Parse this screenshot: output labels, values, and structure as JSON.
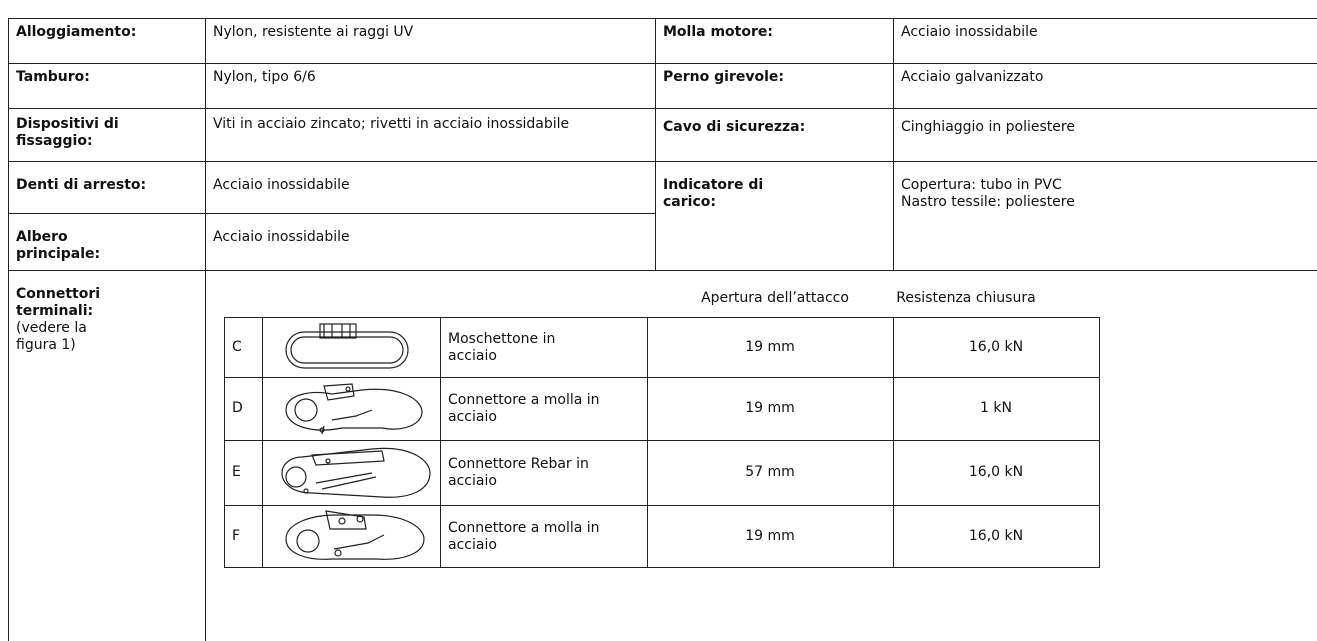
{
  "specs": [
    {
      "label": "Alloggiamento:",
      "value": "Nylon, resistente ai raggi UV"
    },
    {
      "label": "Tamburo:",
      "value": "Nylon, tipo 6/6"
    },
    {
      "label": "Dispositivi di fissaggio:",
      "value": "Viti in acciaio zincato; rivetti in acciaio inossidabile"
    },
    {
      "label": "Denti di arresto:",
      "value": "Acciaio inossidabile"
    },
    {
      "label": "Albero principale:",
      "value": "Acciaio inossidabile"
    },
    {
      "label": "Molla motore:",
      "value": "Acciaio inossidabile"
    },
    {
      "label": "Perno girevole:",
      "value": "Acciaio galvanizzato"
    },
    {
      "label": "Cavo di sicurezza:",
      "value": "Cinghiaggio in poliestere"
    },
    {
      "label": "Indicatore di carico:",
      "value": "Copertura: tubo in PVC\nNastro tessile: poliestere"
    }
  ],
  "connectors": {
    "label": "Connettori terminali:",
    "note": "(vedere la figura 1)",
    "headers": [
      "Apertura dell’attacco",
      "Resistenza chiusura"
    ],
    "items": [
      {
        "letter": "C",
        "description": "Moschettone in acciaio",
        "opening": "19 mm",
        "strength": "16,0 kN"
      },
      {
        "letter": "D",
        "description": "Connettore a molla in acciaio",
        "opening": "19 mm",
        "strength": "1 kN"
      },
      {
        "letter": "E",
        "description": "Connettore Rebar in acciaio",
        "opening": "57 mm",
        "strength": "16,0 kN"
      },
      {
        "letter": "F",
        "description": "Connettore a molla in acciaio",
        "opening": "19 mm",
        "strength": "16,0 kN"
      }
    ]
  }
}
